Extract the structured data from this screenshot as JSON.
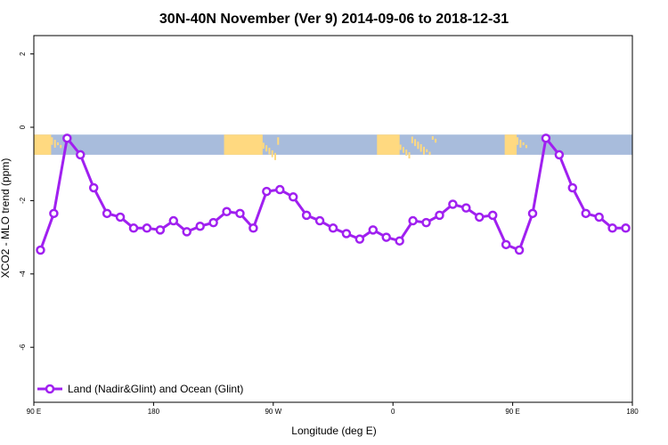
{
  "chart_data": {
    "type": "line",
    "title": "30N-40N November (Ver 9)   2014-09-06 to 2018-12-31",
    "xlabel": "Longitude (deg E)",
    "ylabel": "XCO2 - MLO trend (ppm)",
    "xlim": [
      90,
      540
    ],
    "ylim": [
      -7.5,
      2.5
    ],
    "x_ticks": [
      {
        "value": 90,
        "label": "90 E"
      },
      {
        "value": 180,
        "label": "180"
      },
      {
        "value": 270,
        "label": "90 W"
      },
      {
        "value": 360,
        "label": "0"
      },
      {
        "value": 450,
        "label": "90 E"
      },
      {
        "value": 540,
        "label": "180"
      }
    ],
    "y_ticks": [
      {
        "value": 2,
        "label": "2"
      },
      {
        "value": 0,
        "label": "0"
      },
      {
        "value": -2,
        "label": "-2"
      },
      {
        "value": -4,
        "label": "-4"
      },
      {
        "value": -6,
        "label": "-6"
      }
    ],
    "series": [
      {
        "name": "Land (Nadir&Glint) and Ocean (Glint)",
        "color": "#a020f0",
        "x": [
          95,
          105,
          115,
          125,
          135,
          145,
          155,
          165,
          175,
          185,
          195,
          205,
          215,
          225,
          235,
          245,
          255,
          265,
          275,
          285,
          295,
          305,
          315,
          325,
          335,
          345,
          355,
          365,
          375,
          385,
          395,
          405,
          415,
          425,
          435,
          445,
          455,
          465,
          475,
          485,
          495,
          505,
          515,
          525,
          535
        ],
        "values": [
          -3.35,
          -2.35,
          -0.3,
          -0.75,
          -1.65,
          -2.35,
          -2.45,
          -2.75,
          -2.75,
          -2.8,
          -2.55,
          -2.85,
          -2.7,
          -2.6,
          -2.3,
          -2.35,
          -2.75,
          -1.75,
          -1.7,
          -1.9,
          -2.4,
          -2.55,
          -2.75,
          -2.9,
          -3.05,
          -2.8,
          -3.0,
          -3.1,
          -2.55,
          -2.6,
          -2.4,
          -2.1,
          -2.2,
          -2.45,
          -2.4,
          -3.2,
          -3.35,
          -2.35,
          -0.3,
          -0.75,
          -1.65,
          -2.35,
          -2.45,
          -2.75,
          -2.75
        ]
      }
    ],
    "legend": {
      "position": "bottom-left"
    },
    "grid": false,
    "background_band": {
      "y_range": [
        -0.75,
        -0.2
      ],
      "ocean_color": "#a8bcdc",
      "land_color": "#ffd980"
    }
  }
}
